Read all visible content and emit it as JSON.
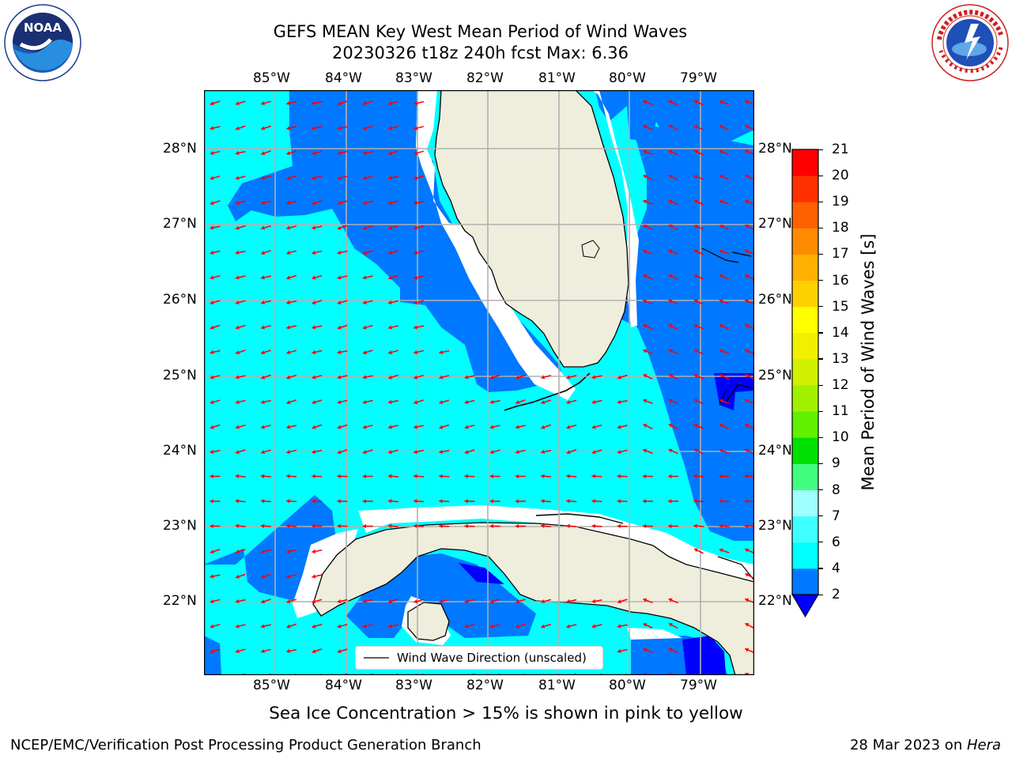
{
  "title": {
    "line1": "GEFS MEAN Key West Mean Period of Wind Waves",
    "line2": "20230326 t18z 240h fcst   Max: 6.36"
  },
  "logos": {
    "noaa": {
      "text": "NOAA",
      "ring_text": "NATIONAL OCEANIC AND ATMOSPHERIC ADMINISTRATION · U.S. DEPARTMENT OF COMMERCE",
      "icon": "noaa-logo-icon"
    },
    "nws": {
      "ring_text": "NATIONAL WEATHER SERVICE",
      "icon": "nws-logo-icon"
    }
  },
  "map": {
    "lon_labels": [
      "85°W",
      "84°W",
      "83°W",
      "82°W",
      "81°W",
      "80°W",
      "79°W"
    ],
    "lat_labels": [
      "28°N",
      "27°N",
      "26°N",
      "25°N",
      "24°N",
      "23°N",
      "22°N"
    ],
    "legend_label": "Wind Wave Direction (unscaled)",
    "colors": {
      "land": "#efeedc",
      "level_2_4": "#0078ff",
      "level_4_6": "#00ffff",
      "below_2": "#0000ff",
      "arrow": "#ff0000",
      "grid": "#b0b0b0"
    }
  },
  "colorbar": {
    "label": "Mean Period of Wind Waves [s]",
    "ticks": [
      "2",
      "4",
      "6",
      "7",
      "8",
      "9",
      "10",
      "11",
      "12",
      "13",
      "14",
      "15",
      "16",
      "17",
      "18",
      "19",
      "20",
      "21"
    ],
    "colors": [
      "#0078ff",
      "#00ffff",
      "#40ffff",
      "#a0ffff",
      "#40ff80",
      "#00e000",
      "#60f000",
      "#a0f000",
      "#d0f000",
      "#f0f000",
      "#ffff00",
      "#ffd000",
      "#ffb000",
      "#ff8c00",
      "#ff6000",
      "#ff3000",
      "#ff0000"
    ],
    "under_color": "#0000ff"
  },
  "footer": {
    "note": "Sea Ice Concentration > 15% is shown in pink to yellow",
    "left": "NCEP/EMC/Verification Post Processing Product Generation Branch",
    "right_prefix": "28 Mar 2023 on ",
    "right_machine": "Hera"
  }
}
